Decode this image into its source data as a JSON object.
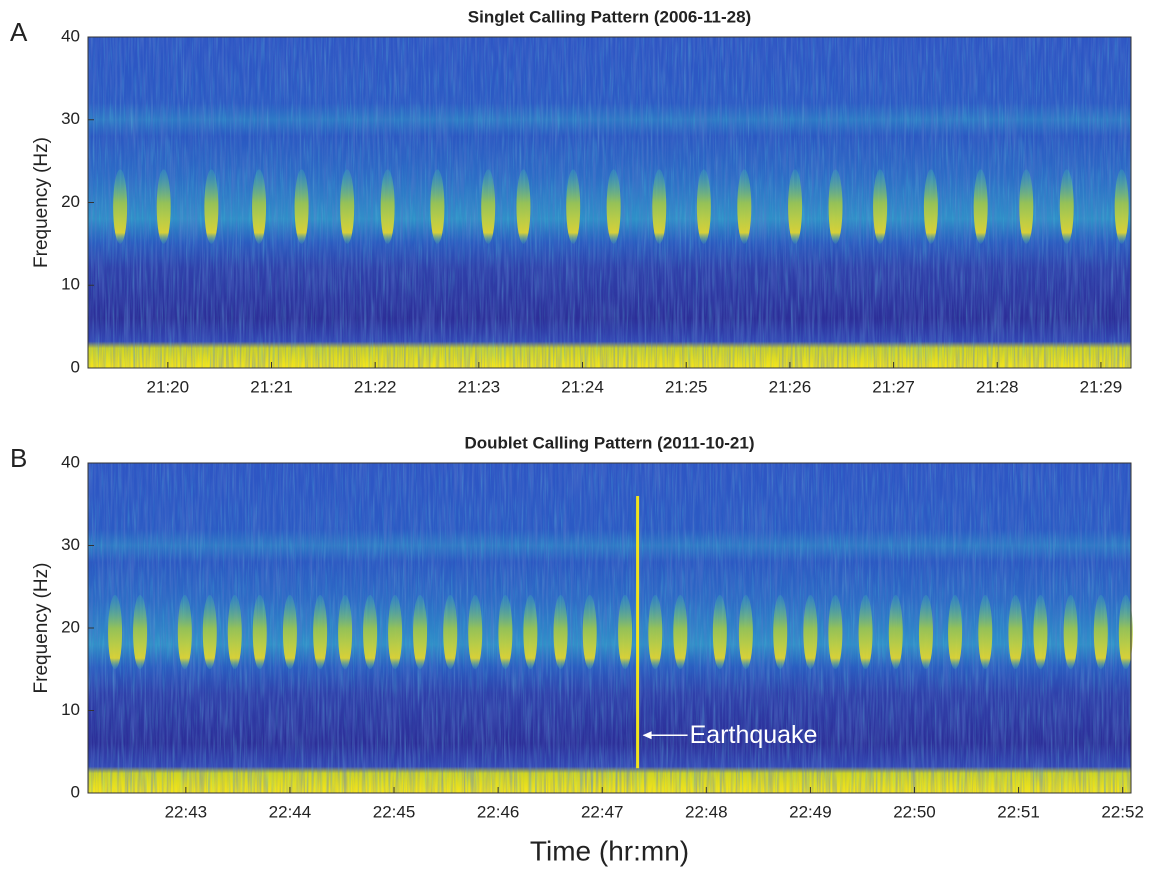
{
  "chart_data": [
    {
      "type": "spectrogram",
      "panel_label": "A",
      "title": "Singlet Calling Pattern (2006-11-28)",
      "ylabel": "Frequency (Hz)",
      "ylim": [
        0,
        40
      ],
      "yticks": [
        0,
        10,
        20,
        30,
        40
      ],
      "xlim": [
        19.23,
        29.29
      ],
      "xticks": [
        {
          "value": 20,
          "label": "21:20"
        },
        {
          "value": 21,
          "label": "21:21"
        },
        {
          "value": 22,
          "label": "21:22"
        },
        {
          "value": 23,
          "label": "21:23"
        },
        {
          "value": 24,
          "label": "21:24"
        },
        {
          "value": 25,
          "label": "21:25"
        },
        {
          "value": 26,
          "label": "21:26"
        },
        {
          "value": 27,
          "label": "21:27"
        },
        {
          "value": 28,
          "label": "21:28"
        },
        {
          "value": 29,
          "label": "21:29"
        }
      ],
      "calls": [
        19.54,
        19.96,
        20.42,
        20.88,
        21.29,
        21.73,
        22.12,
        22.6,
        23.09,
        23.43,
        23.91,
        24.3,
        24.74,
        25.17,
        25.56,
        26.05,
        26.44,
        26.87,
        27.36,
        27.84,
        28.28,
        28.67,
        29.2
      ]
    },
    {
      "type": "spectrogram",
      "panel_label": "B",
      "title": "Doublet Calling Pattern (2011-10-21)",
      "ylabel": "Frequency (Hz)",
      "xlabel": "Time (hr:mn)",
      "ylim": [
        0,
        40
      ],
      "yticks": [
        0,
        10,
        20,
        30,
        40
      ],
      "xlim": [
        42.06,
        52.08
      ],
      "xticks": [
        {
          "value": 43,
          "label": "22:43"
        },
        {
          "value": 44,
          "label": "22:44"
        },
        {
          "value": 45,
          "label": "22:45"
        },
        {
          "value": 46,
          "label": "22:46"
        },
        {
          "value": 47,
          "label": "22:47"
        },
        {
          "value": 48,
          "label": "22:48"
        },
        {
          "value": 49,
          "label": "22:49"
        },
        {
          "value": 50,
          "label": "22:50"
        },
        {
          "value": 51,
          "label": "22:51"
        },
        {
          "value": 52,
          "label": "22:52"
        }
      ],
      "calls": [
        42.32,
        42.56,
        42.99,
        43.23,
        43.47,
        43.71,
        44.0,
        44.29,
        44.53,
        44.77,
        45.01,
        45.25,
        45.54,
        45.78,
        46.07,
        46.31,
        46.6,
        46.88,
        47.22,
        47.51,
        47.75,
        48.13,
        48.38,
        48.71,
        49.0,
        49.24,
        49.53,
        49.82,
        50.11,
        50.39,
        50.68,
        50.97,
        51.21,
        51.5,
        51.79,
        52.03
      ],
      "annotations": [
        {
          "text": "Earthquake",
          "x": 47.34,
          "y": 7
        }
      ]
    }
  ]
}
